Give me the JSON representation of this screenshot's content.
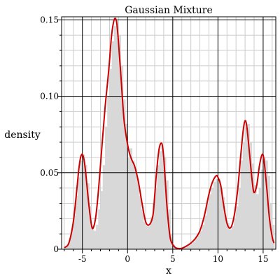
{
  "chart_data": {
    "type": "area",
    "title": "Gaussian Mixture",
    "xlabel": "x",
    "ylabel": "density",
    "xlim": [
      -7.3,
      16.4
    ],
    "ylim": [
      0,
      0.152
    ],
    "x_ticks": [
      {
        "value": -5,
        "label": "-5"
      },
      {
        "value": 0,
        "label": "0"
      },
      {
        "value": 5,
        "label": "5"
      },
      {
        "value": 10,
        "label": "10"
      },
      {
        "value": 15,
        "label": "15"
      }
    ],
    "y_ticks": [
      {
        "value": 0,
        "label": "0"
      },
      {
        "value": 0.05,
        "label": "0.05"
      },
      {
        "value": 0.1,
        "label": "0.10"
      },
      {
        "value": 0.15,
        "label": "0.15"
      }
    ],
    "grid": true,
    "colors": {
      "curve": "#cc0000",
      "histogram": "#d8d8d8",
      "grid_major": "#000000",
      "grid_minor": "#cccccc"
    },
    "density_curve": {
      "x": [
        -7.0,
        -6.5,
        -6.0,
        -5.6,
        -5.4,
        -5.2,
        -5.0,
        -4.8,
        -4.6,
        -4.3,
        -4.0,
        -3.8,
        -3.5,
        -3.2,
        -2.8,
        -2.5,
        -2.2,
        -2.0,
        -1.8,
        -1.6,
        -1.4,
        -1.2,
        -1.0,
        -0.7,
        -0.4,
        -0.1,
        0.2,
        0.5,
        0.8,
        1.2,
        1.6,
        2.0,
        2.4,
        2.8,
        3.0,
        3.2,
        3.5,
        3.8,
        4.0,
        4.2,
        4.4,
        4.7,
        5.0,
        5.3,
        5.6,
        6.0,
        6.5,
        7.0,
        7.5,
        8.0,
        8.5,
        9.0,
        9.4,
        9.8,
        10.0,
        10.3,
        10.6,
        11.0,
        11.4,
        11.8,
        12.2,
        12.5,
        12.8,
        13.0,
        13.2,
        13.5,
        13.8,
        14.0,
        14.3,
        14.6,
        14.9,
        15.1,
        15.4,
        15.7,
        16.0,
        16.2
      ],
      "y": [
        0.001,
        0.004,
        0.018,
        0.04,
        0.052,
        0.06,
        0.062,
        0.058,
        0.048,
        0.03,
        0.016,
        0.014,
        0.022,
        0.04,
        0.07,
        0.092,
        0.11,
        0.123,
        0.138,
        0.147,
        0.151,
        0.148,
        0.135,
        0.11,
        0.085,
        0.072,
        0.063,
        0.058,
        0.054,
        0.044,
        0.03,
        0.018,
        0.016,
        0.022,
        0.035,
        0.05,
        0.066,
        0.069,
        0.06,
        0.042,
        0.025,
        0.008,
        0.003,
        0.001,
        0.0005,
        0.0006,
        0.002,
        0.004,
        0.007,
        0.012,
        0.022,
        0.036,
        0.044,
        0.048,
        0.047,
        0.042,
        0.03,
        0.017,
        0.014,
        0.022,
        0.04,
        0.06,
        0.078,
        0.084,
        0.08,
        0.062,
        0.044,
        0.037,
        0.042,
        0.055,
        0.062,
        0.058,
        0.04,
        0.02,
        0.008,
        0.004
      ]
    },
    "histogram": {
      "bin_width": 0.25,
      "bins_start": [
        -7.0,
        -6.75,
        -6.5,
        -6.25,
        -6.0,
        -5.75,
        -5.5,
        -5.25,
        -5.0,
        -4.75,
        -4.5,
        -4.25,
        -4.0,
        -3.75,
        -3.5,
        -3.25,
        -3.0,
        -2.75,
        -2.5,
        -2.25,
        -2.0,
        -1.75,
        -1.5,
        -1.25,
        -1.0,
        -0.75,
        -0.5,
        -0.25,
        0.0,
        0.25,
        0.5,
        0.75,
        1.0,
        1.25,
        1.5,
        1.75,
        2.0,
        2.25,
        2.5,
        2.75,
        3.0,
        3.25,
        3.5,
        3.75,
        4.0,
        4.25,
        4.5,
        4.75,
        5.0,
        5.25,
        5.5,
        5.75,
        6.0,
        6.25,
        6.5,
        6.75,
        7.0,
        7.25,
        7.5,
        7.75,
        8.0,
        8.25,
        8.5,
        8.75,
        9.0,
        9.25,
        9.5,
        9.75,
        10.0,
        10.25,
        10.5,
        10.75,
        11.0,
        11.25,
        11.5,
        11.75,
        12.0,
        12.25,
        12.5,
        12.75,
        13.0,
        13.25,
        13.5,
        13.75,
        14.0,
        14.25,
        14.5,
        14.75,
        15.0,
        15.25,
        15.5,
        15.75,
        16.0
      ],
      "counts": [
        0.001,
        0.003,
        0.006,
        0.013,
        0.022,
        0.035,
        0.047,
        0.058,
        0.062,
        0.055,
        0.043,
        0.028,
        0.015,
        0.012,
        0.016,
        0.026,
        0.038,
        0.055,
        0.08,
        0.1,
        0.118,
        0.136,
        0.146,
        0.15,
        0.14,
        0.12,
        0.098,
        0.082,
        0.06,
        0.066,
        0.058,
        0.052,
        0.046,
        0.035,
        0.026,
        0.018,
        0.015,
        0.015,
        0.021,
        0.03,
        0.04,
        0.055,
        0.064,
        0.068,
        0.06,
        0.045,
        0.026,
        0.01,
        0.003,
        0.001,
        0.0005,
        0.0005,
        0.0008,
        0.001,
        0.002,
        0.003,
        0.004,
        0.005,
        0.007,
        0.009,
        0.012,
        0.016,
        0.022,
        0.03,
        0.036,
        0.04,
        0.044,
        0.046,
        0.046,
        0.04,
        0.034,
        0.022,
        0.017,
        0.013,
        0.015,
        0.02,
        0.028,
        0.04,
        0.058,
        0.07,
        0.08,
        0.082,
        0.07,
        0.056,
        0.042,
        0.036,
        0.04,
        0.052,
        0.06,
        0.058,
        0.048,
        0.03,
        0.016
      ]
    }
  }
}
